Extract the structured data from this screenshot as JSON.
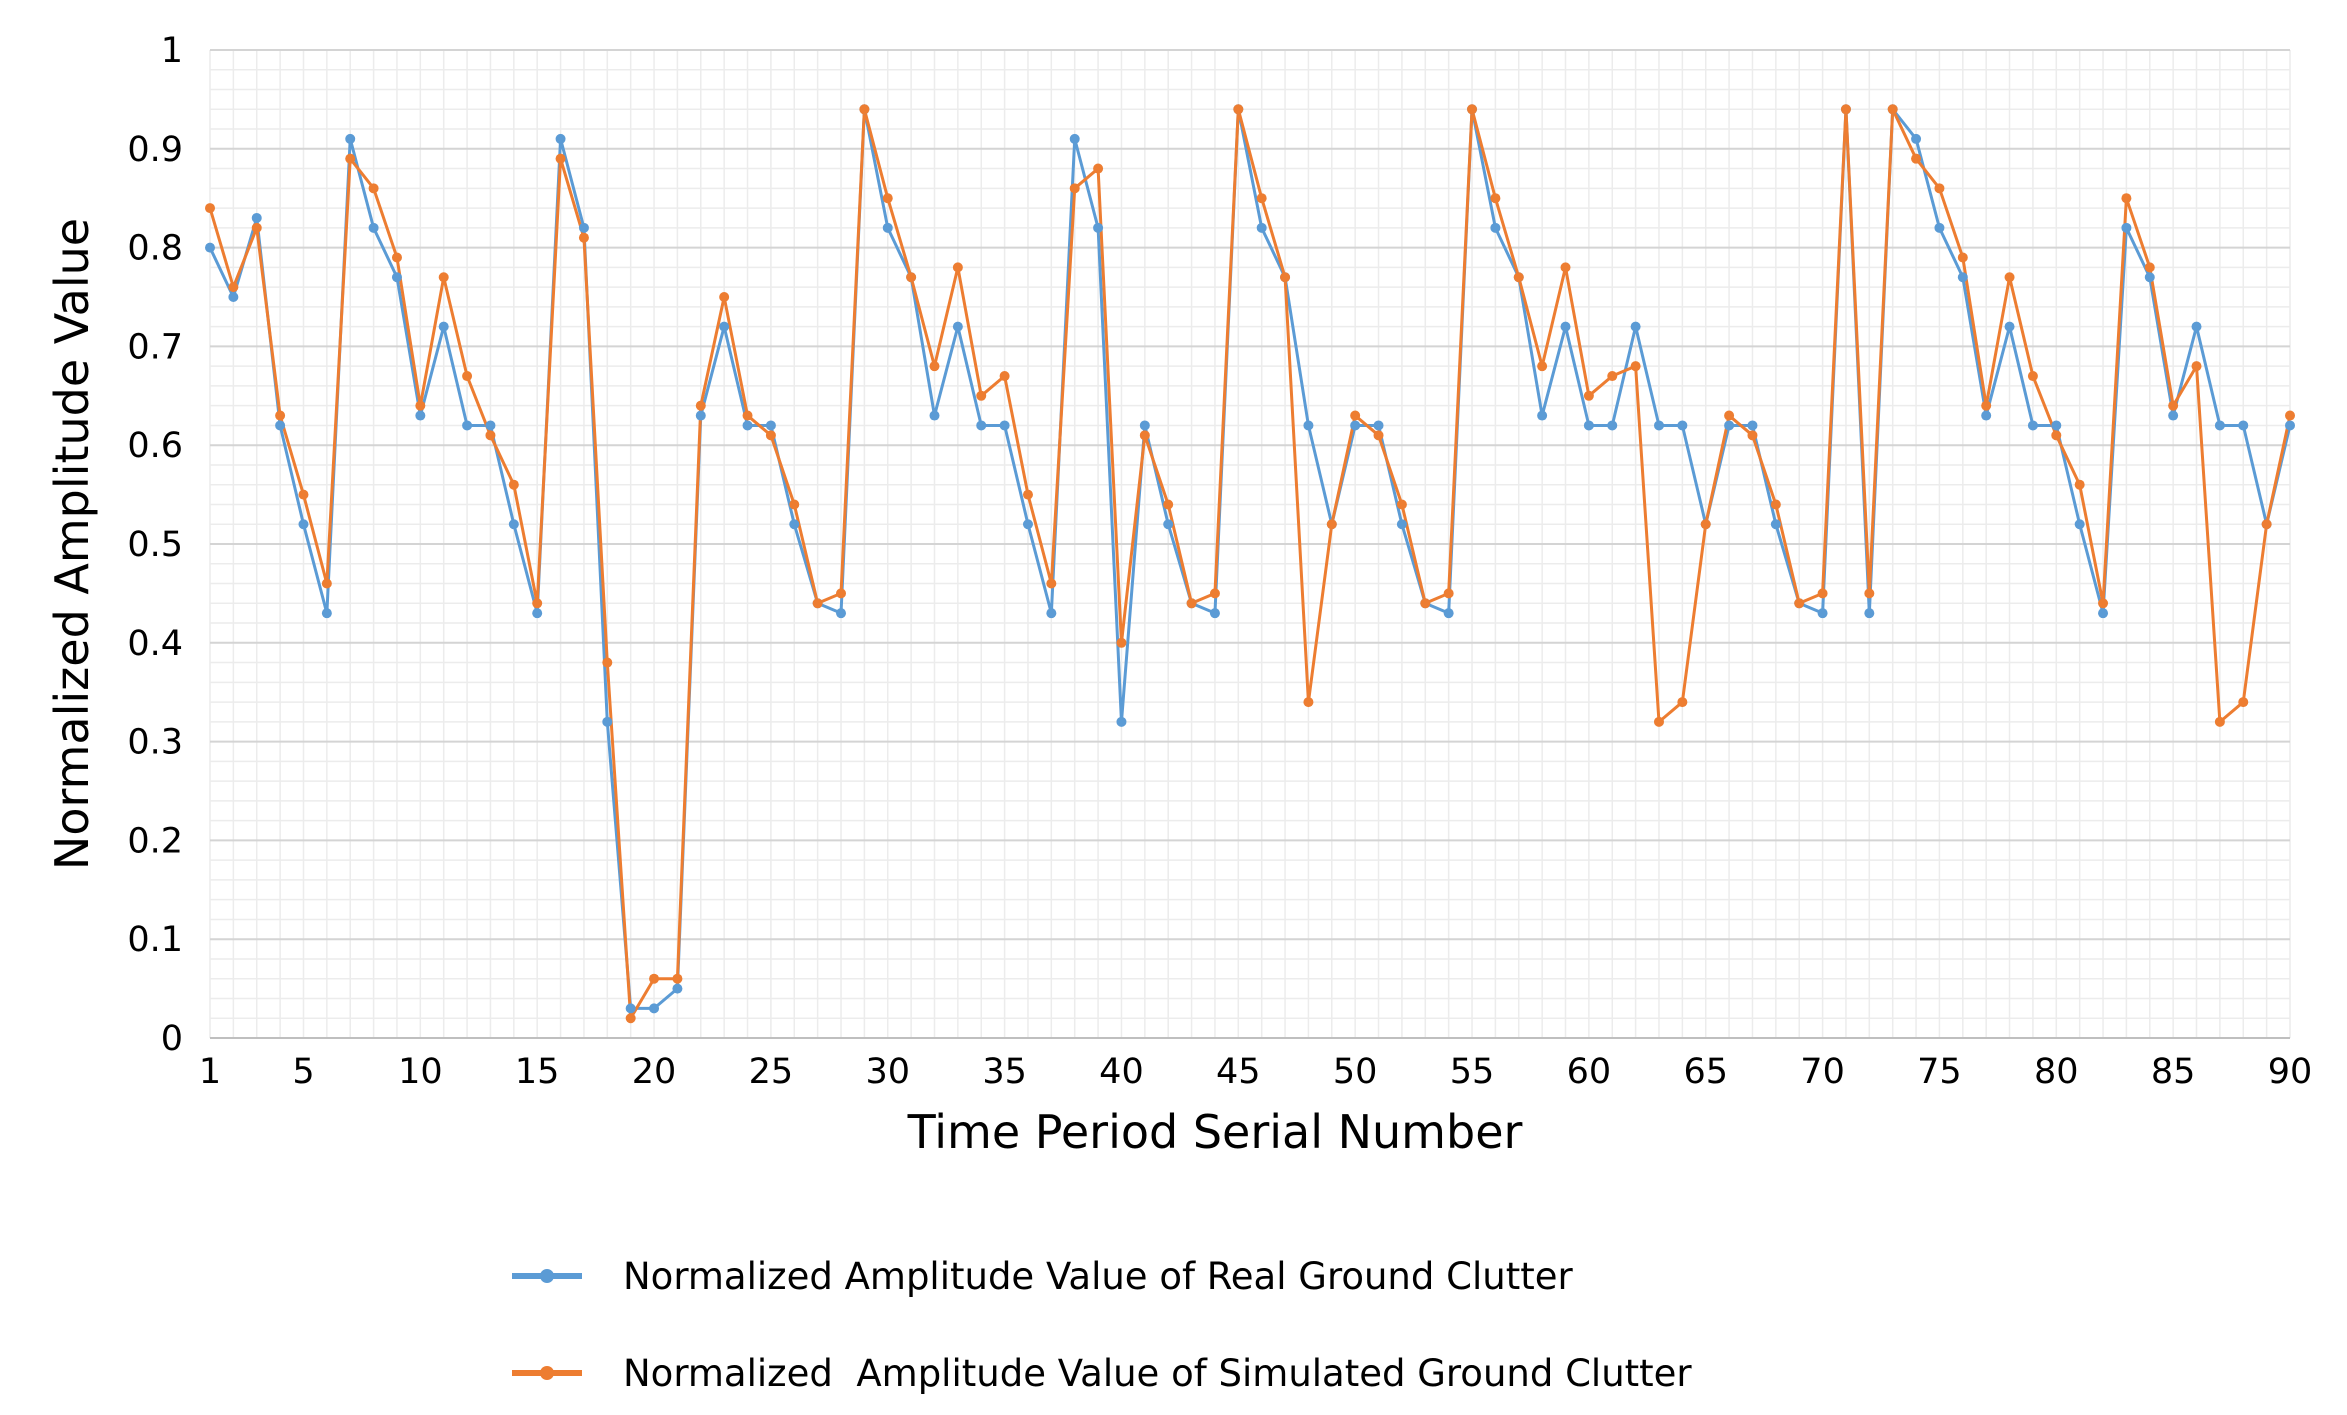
{
  "chart_data": {
    "type": "line",
    "title": "",
    "xlabel": "Time Period Serial Number",
    "ylabel": "Normalized Amplitude Value",
    "xlim": [
      1,
      90
    ],
    "ylim": [
      0,
      1
    ],
    "x_ticks": [
      1,
      5,
      10,
      15,
      20,
      25,
      30,
      35,
      40,
      45,
      50,
      55,
      60,
      65,
      70,
      75,
      80,
      85,
      90
    ],
    "y_ticks": [
      0,
      0.1,
      0.2,
      0.3,
      0.4,
      0.5,
      0.6,
      0.7,
      0.8,
      0.9,
      1
    ],
    "y_tick_labels": [
      "0",
      "0.1",
      "0.2",
      "0.3",
      "0.4",
      "0.5",
      "0.6",
      "0.7",
      "0.8",
      "0.9",
      "1"
    ],
    "grid": true,
    "legend_position": "bottom-center",
    "series": [
      {
        "name": "Normalized Amplitude Value of Real Ground Clutter",
        "color": "#5b9bd5",
        "values": [
          0.8,
          0.75,
          0.83,
          0.62,
          0.52,
          0.43,
          0.91,
          0.82,
          0.77,
          0.63,
          0.72,
          0.62,
          0.62,
          0.52,
          0.43,
          0.91,
          0.82,
          0.32,
          0.03,
          0.03,
          0.05,
          0.63,
          0.72,
          0.62,
          0.62,
          0.52,
          0.44,
          0.43,
          0.94,
          0.82,
          0.77,
          0.63,
          0.72,
          0.62,
          0.62,
          0.52,
          0.43,
          0.91,
          0.82,
          0.32,
          0.62,
          0.52,
          0.44,
          0.43,
          0.94,
          0.82,
          0.77,
          0.62,
          0.52,
          0.62,
          0.62,
          0.52,
          0.44,
          0.43,
          0.94,
          0.82,
          0.77,
          0.63,
          0.72,
          0.62,
          0.62,
          0.72,
          0.62,
          0.62,
          0.52,
          0.62,
          0.62,
          0.52,
          0.44,
          0.43,
          0.94,
          0.43,
          0.94,
          0.91,
          0.82,
          0.77,
          0.63,
          0.72,
          0.62,
          0.62,
          0.52,
          0.43,
          0.82,
          0.77,
          0.63,
          0.72,
          0.62,
          0.62,
          0.52,
          0.62
        ]
      },
      {
        "name": "Normalized  Amplitude Value of Simulated Ground Clutter",
        "color": "#ed7d31",
        "values": [
          0.84,
          0.76,
          0.82,
          0.63,
          0.55,
          0.46,
          0.89,
          0.86,
          0.79,
          0.64,
          0.77,
          0.67,
          0.61,
          0.56,
          0.44,
          0.89,
          0.81,
          0.38,
          0.02,
          0.06,
          0.06,
          0.64,
          0.75,
          0.63,
          0.61,
          0.54,
          0.44,
          0.45,
          0.94,
          0.85,
          0.77,
          0.68,
          0.78,
          0.65,
          0.67,
          0.55,
          0.46,
          0.86,
          0.88,
          0.4,
          0.61,
          0.54,
          0.44,
          0.45,
          0.94,
          0.85,
          0.77,
          0.34,
          0.52,
          0.63,
          0.61,
          0.54,
          0.44,
          0.45,
          0.94,
          0.85,
          0.77,
          0.68,
          0.78,
          0.65,
          0.67,
          0.68,
          0.32,
          0.34,
          0.52,
          0.63,
          0.61,
          0.54,
          0.44,
          0.45,
          0.94,
          0.45,
          0.94,
          0.89,
          0.86,
          0.79,
          0.64,
          0.77,
          0.67,
          0.61,
          0.56,
          0.44,
          0.85,
          0.78,
          0.64,
          0.68,
          0.32,
          0.34,
          0.52,
          0.63
        ]
      }
    ]
  }
}
